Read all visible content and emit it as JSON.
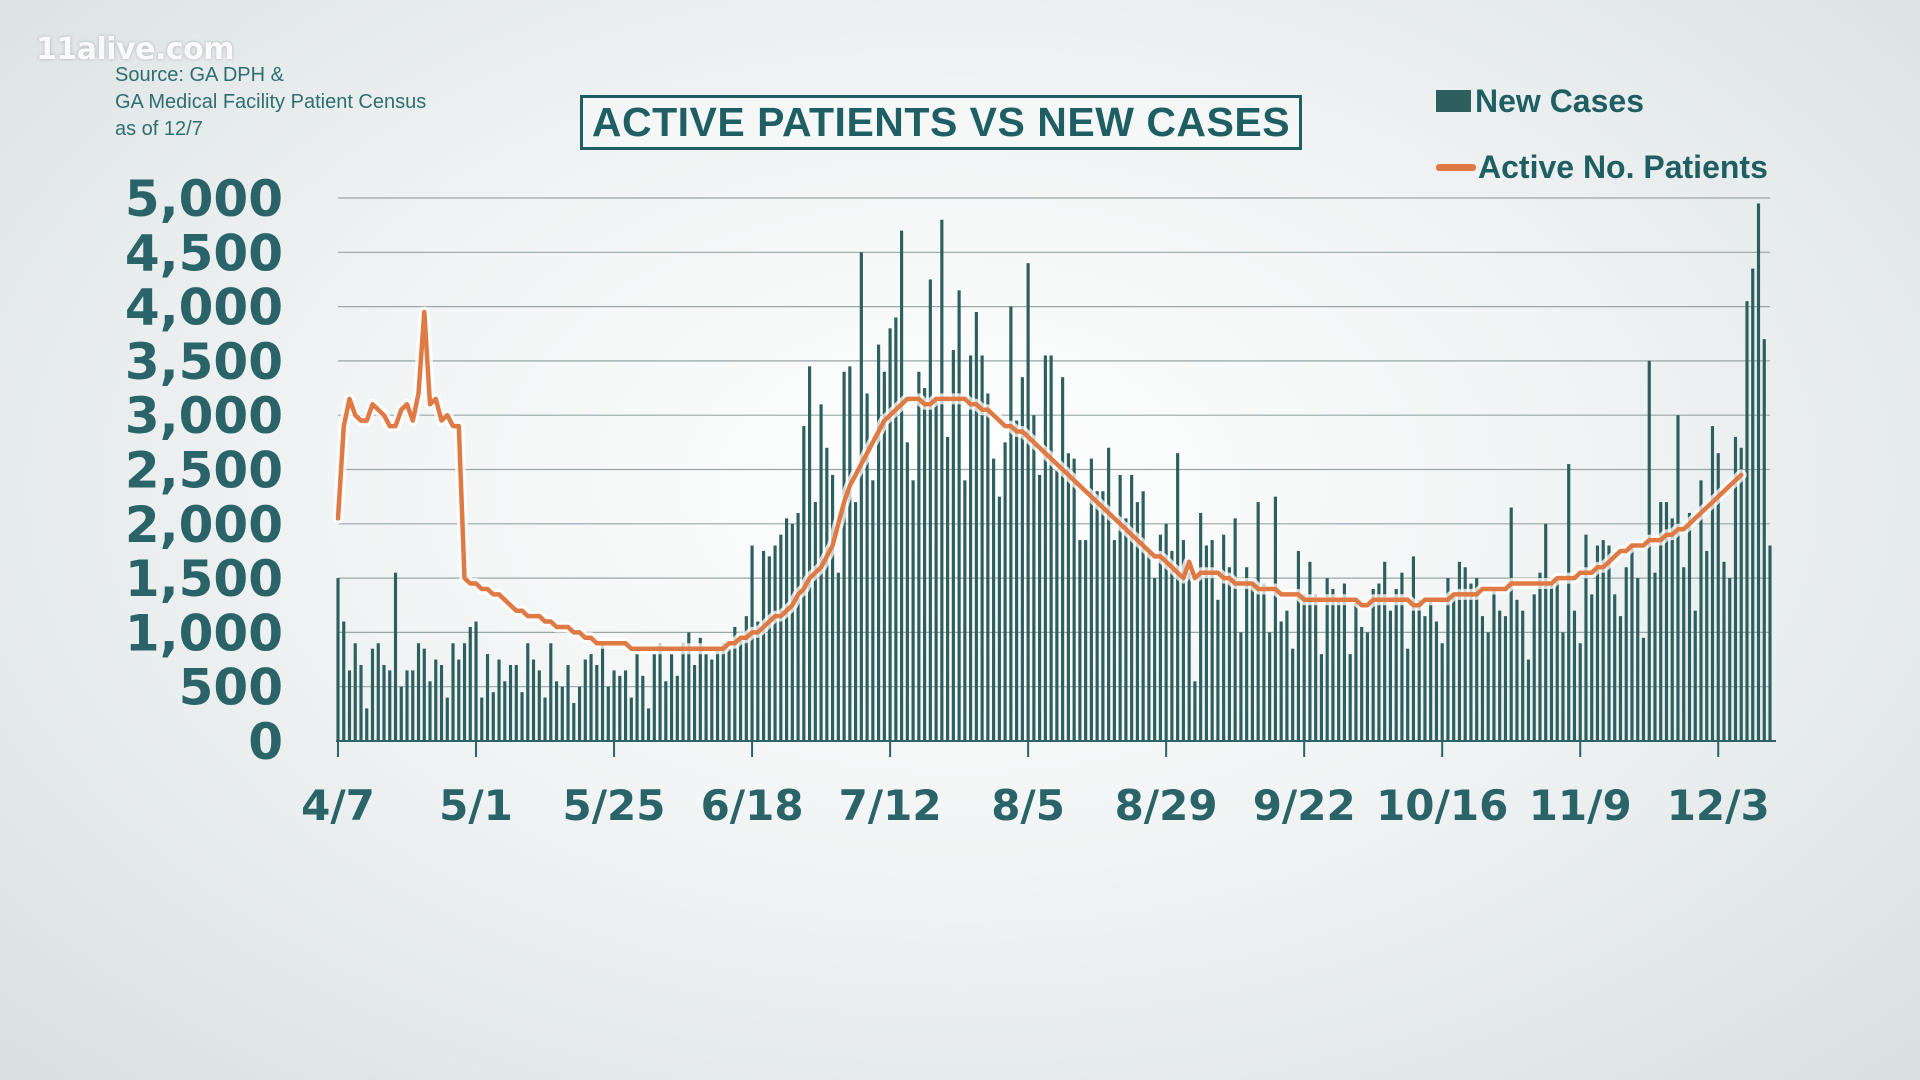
{
  "watermark": "11alive.com",
  "source": {
    "line1": "Source: GA DPH &",
    "line2": "GA Medical Facility Patient Census",
    "line3": "as of 12/7"
  },
  "colors": {
    "bars": "#2d5f5f",
    "line": "#e07a45",
    "text": "#2a6468",
    "grid": "#9aa5a7"
  },
  "chart_data": {
    "type": "bar",
    "title": "ACTIVE PATIENTS VS NEW CASES",
    "xlabel": "",
    "ylabel": "",
    "ylim": [
      0,
      5000
    ],
    "yticks": [
      0,
      500,
      1000,
      1500,
      2000,
      2500,
      3000,
      3500,
      4000,
      4500,
      5000
    ],
    "ytick_labels": [
      "0",
      "500",
      "1,000",
      "1,500",
      "2,000",
      "2,500",
      "3,000",
      "3,500",
      "4,000",
      "4,500",
      "5,000"
    ],
    "grid": true,
    "legend_position": "top-right",
    "xtick_labels": [
      "4/7",
      "5/1",
      "5/25",
      "6/18",
      "7/12",
      "8/5",
      "8/29",
      "9/22",
      "10/16",
      "11/9",
      "12/3"
    ],
    "xtick_day_index": [
      0,
      24,
      48,
      72,
      96,
      120,
      144,
      168,
      192,
      216,
      240
    ],
    "series": [
      {
        "name": "New Cases",
        "type": "bar",
        "values": [
          1500,
          1100,
          650,
          900,
          700,
          300,
          850,
          900,
          700,
          650,
          1550,
          500,
          650,
          650,
          900,
          850,
          550,
          750,
          700,
          400,
          900,
          750,
          900,
          1050,
          1100,
          400,
          800,
          450,
          750,
          550,
          700,
          700,
          450,
          900,
          750,
          650,
          400,
          900,
          550,
          500,
          700,
          350,
          500,
          750,
          800,
          700,
          900,
          500,
          650,
          600,
          650,
          400,
          800,
          600,
          300,
          800,
          900,
          550,
          800,
          600,
          900,
          1000,
          700,
          950,
          800,
          750,
          850,
          900,
          850,
          1050,
          950,
          1150,
          1800,
          1100,
          1750,
          1700,
          1800,
          1900,
          2050,
          2000,
          2100,
          2900,
          3450,
          2200,
          3100,
          2700,
          2450,
          1550,
          3400,
          3450,
          2200,
          4500,
          3200,
          2400,
          3650,
          3400,
          3800,
          3900,
          4700,
          2750,
          2400,
          3400,
          3250,
          4250,
          3150,
          4800,
          2800,
          3600,
          4150,
          2400,
          3550,
          3950,
          3550,
          3200,
          2600,
          2250,
          2750,
          4000,
          2950,
          3350,
          4400,
          3000,
          2450,
          3550,
          3550,
          2500,
          3350,
          2650,
          2600,
          1850,
          1850,
          2600,
          2300,
          2300,
          2700,
          1850,
          2450,
          2050,
          2450,
          2200,
          2300,
          1750,
          1500,
          1900,
          2000,
          1750,
          2650,
          1850,
          1550,
          550,
          2100,
          1800,
          1850,
          1300,
          1900,
          1600,
          2050,
          1000,
          1600,
          1450,
          2200,
          1450,
          1000,
          2250,
          1100,
          1200,
          850,
          1750,
          1350,
          1650,
          1350,
          800,
          1500,
          1400,
          1300,
          1450,
          800,
          1300,
          1050,
          1000,
          1400,
          1450,
          1650,
          1200,
          1400,
          1550,
          850,
          1700,
          1300,
          1150,
          1300,
          1100,
          900,
          1500,
          1350,
          1650,
          1600,
          1450,
          1500,
          1150,
          1000,
          1400,
          1200,
          1150,
          2150,
          1300,
          1200,
          750,
          1350,
          1550,
          2000,
          1450,
          1500,
          1000,
          2550,
          1200,
          900,
          1900,
          1350,
          1800,
          1850,
          1800,
          1350,
          1150,
          1600,
          1800,
          1500,
          950,
          3500,
          1550,
          2200,
          2200,
          2050,
          3000,
          1600,
          2100,
          1200,
          2400,
          1750,
          2900,
          2650,
          1650,
          1500,
          2800,
          2700,
          4050,
          4350,
          4950,
          3700,
          1800
        ],
        "color": "#2d5f5f"
      },
      {
        "name": "Active No. Patients",
        "type": "line",
        "values": [
          2050,
          2900,
          3150,
          3000,
          2950,
          2950,
          3100,
          3050,
          3000,
          2900,
          2900,
          3050,
          3100,
          2950,
          3200,
          3950,
          3100,
          3150,
          2950,
          3000,
          2900,
          2900,
          1500,
          1450,
          1450,
          1400,
          1400,
          1350,
          1350,
          1300,
          1250,
          1200,
          1200,
          1150,
          1150,
          1150,
          1100,
          1100,
          1050,
          1050,
          1050,
          1000,
          1000,
          950,
          950,
          900,
          900,
          900,
          900,
          900,
          900,
          850,
          850,
          850,
          850,
          850,
          850,
          850,
          850,
          850,
          850,
          850,
          850,
          850,
          850,
          850,
          850,
          850,
          900,
          900,
          950,
          950,
          1000,
          1000,
          1050,
          1100,
          1150,
          1150,
          1200,
          1250,
          1350,
          1400,
          1500,
          1550,
          1600,
          1700,
          1800,
          2000,
          2200,
          2350,
          2450,
          2550,
          2650,
          2750,
          2850,
          2950,
          3000,
          3050,
          3100,
          3150,
          3150,
          3150,
          3100,
          3100,
          3150,
          3150,
          3150,
          3150,
          3150,
          3150,
          3100,
          3100,
          3050,
          3050,
          3000,
          2950,
          2900,
          2900,
          2850,
          2850,
          2800,
          2750,
          2700,
          2650,
          2600,
          2550,
          2500,
          2450,
          2400,
          2350,
          2300,
          2250,
          2200,
          2150,
          2100,
          2050,
          2000,
          1950,
          1900,
          1850,
          1800,
          1750,
          1700,
          1700,
          1650,
          1600,
          1550,
          1500,
          1650,
          1500,
          1550,
          1550,
          1550,
          1550,
          1500,
          1500,
          1450,
          1450,
          1450,
          1450,
          1400,
          1400,
          1400,
          1400,
          1350,
          1350,
          1350,
          1350,
          1300,
          1300,
          1300,
          1300,
          1300,
          1300,
          1300,
          1300,
          1300,
          1300,
          1250,
          1250,
          1300,
          1300,
          1300,
          1300,
          1300,
          1300,
          1300,
          1250,
          1250,
          1300,
          1300,
          1300,
          1300,
          1300,
          1350,
          1350,
          1350,
          1350,
          1350,
          1400,
          1400,
          1400,
          1400,
          1400,
          1450,
          1450,
          1450,
          1450,
          1450,
          1450,
          1450,
          1450,
          1500,
          1500,
          1500,
          1500,
          1550,
          1550,
          1550,
          1600,
          1600,
          1650,
          1700,
          1750,
          1750,
          1800,
          1800,
          1800,
          1850,
          1850,
          1850,
          1900,
          1900,
          1950,
          1950,
          2000,
          2050,
          2100,
          2150,
          2200,
          2250,
          2300,
          2350,
          2400,
          2450
        ],
        "color": "#e07a45"
      }
    ]
  }
}
